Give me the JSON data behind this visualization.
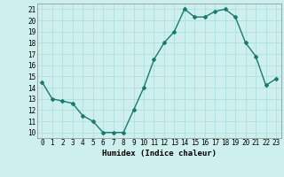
{
  "x": [
    0,
    1,
    2,
    3,
    4,
    5,
    6,
    7,
    8,
    9,
    10,
    11,
    12,
    13,
    14,
    15,
    16,
    17,
    18,
    19,
    20,
    21,
    22,
    23
  ],
  "y": [
    14.5,
    13.0,
    12.8,
    12.6,
    11.5,
    11.0,
    10.0,
    10.0,
    10.0,
    12.0,
    14.0,
    16.5,
    18.0,
    19.0,
    21.0,
    20.3,
    20.3,
    20.8,
    21.0,
    20.3,
    18.0,
    16.8,
    14.2,
    14.8
  ],
  "xlabel": "Humidex (Indice chaleur)",
  "xlim": [
    -0.5,
    23.5
  ],
  "ylim": [
    9.5,
    21.5
  ],
  "yticks": [
    10,
    11,
    12,
    13,
    14,
    15,
    16,
    17,
    18,
    19,
    20,
    21
  ],
  "xticks": [
    0,
    1,
    2,
    3,
    4,
    5,
    6,
    7,
    8,
    9,
    10,
    11,
    12,
    13,
    14,
    15,
    16,
    17,
    18,
    19,
    20,
    21,
    22,
    23
  ],
  "line_color": "#1a7a6e",
  "marker": "D",
  "marker_size": 2.0,
  "line_width": 1.0,
  "bg_color": "#cdf0ee",
  "grid_color": "#a8dbd8",
  "axis_fontsize": 6.5,
  "tick_fontsize": 5.5
}
